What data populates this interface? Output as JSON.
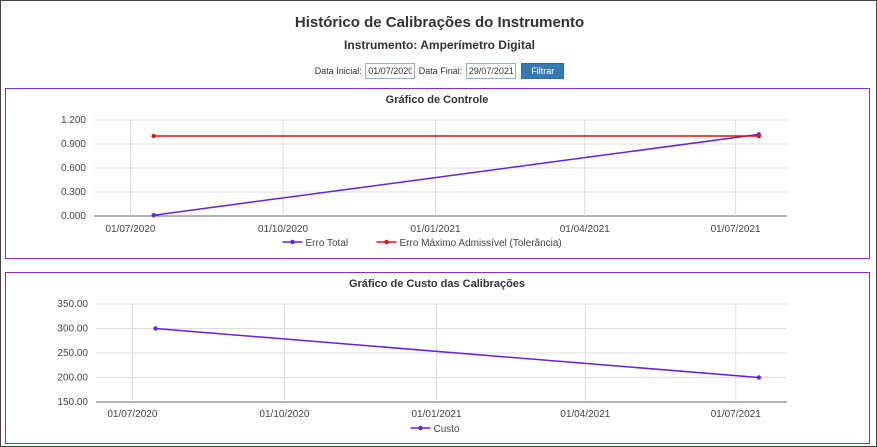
{
  "page": {
    "title": "Histórico de Calibrações do Instrumento",
    "subtitle": "Instrumento: Amperímetro Digital"
  },
  "filter": {
    "start_label": "Data Inicial:",
    "start_value": "01/07/2020",
    "end_label": "Data Final:",
    "end_value": "29/07/2021",
    "button_label": "Filtrar"
  },
  "chart_data": [
    {
      "type": "line",
      "title": "Gráfico de Controle",
      "x": [
        "2020-07-15",
        "2021-07-15"
      ],
      "x_ticks": [
        "01/07/2020",
        "01/10/2020",
        "01/01/2021",
        "01/04/2021",
        "01/07/2021"
      ],
      "x_tick_dates": [
        "2020-07-01",
        "2020-10-01",
        "2021-01-01",
        "2021-04-01",
        "2021-07-01"
      ],
      "x_range": [
        "2020-06-09",
        "2021-08-01"
      ],
      "y_ticks": [
        "0.000",
        "0.300",
        "0.600",
        "0.900",
        "1.200"
      ],
      "ylim": [
        0,
        1.2
      ],
      "grid": true,
      "legend_position": "bottom",
      "series": [
        {
          "name": "Erro Total",
          "values": [
            0.01,
            1.02
          ],
          "color": "#6a1ee6"
        },
        {
          "name": "Erro Máximo Admissível (Tolerância)",
          "values": [
            1.0,
            1.0
          ],
          "color": "#e01010"
        }
      ]
    },
    {
      "type": "line",
      "title": "Gráfico de Custo das Calibrações",
      "x": [
        "2020-07-15",
        "2021-07-15"
      ],
      "x_ticks": [
        "01/07/2020",
        "01/10/2020",
        "01/01/2021",
        "01/04/2021",
        "01/07/2021"
      ],
      "x_tick_dates": [
        "2020-07-01",
        "2020-10-01",
        "2021-01-01",
        "2021-04-01",
        "2021-07-01"
      ],
      "x_range": [
        "2020-06-09",
        "2021-08-01"
      ],
      "y_ticks": [
        "150.00",
        "200.00",
        "250.00",
        "300.00",
        "350.00"
      ],
      "ylim": [
        150,
        350
      ],
      "grid": true,
      "legend_position": "bottom",
      "series": [
        {
          "name": "Custo",
          "values": [
            300,
            200
          ],
          "color": "#6a1ee6"
        }
      ]
    }
  ]
}
